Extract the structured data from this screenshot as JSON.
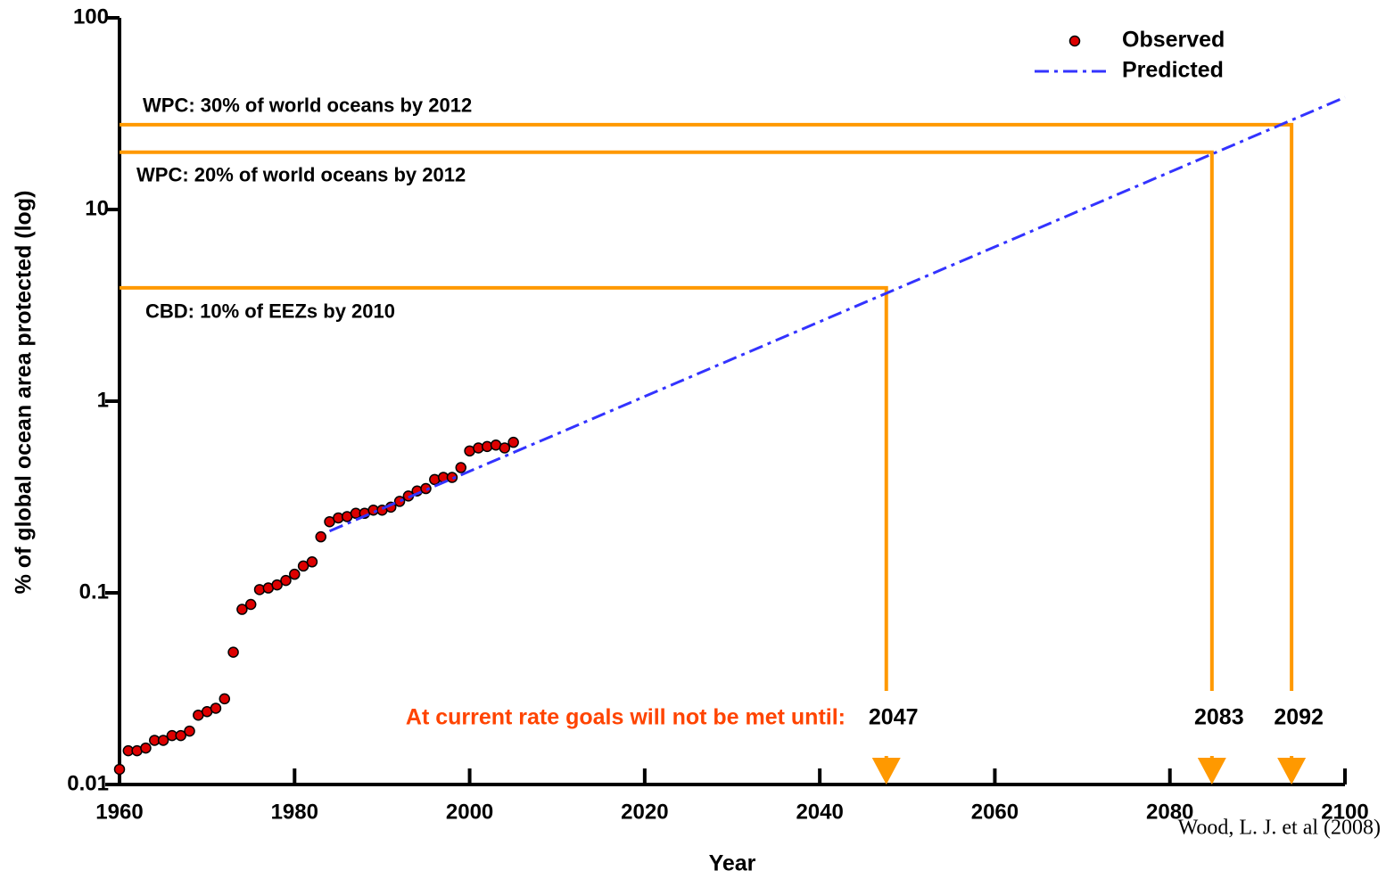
{
  "chart_data": {
    "type": "scatter",
    "y_label": "% of global ocean area protected (log)",
    "x_label": "Year",
    "xlim": [
      1960,
      2100
    ],
    "xticks": [
      1960,
      1980,
      2000,
      2020,
      2040,
      2060,
      2080,
      2100
    ],
    "ylim": [
      0.01,
      100
    ],
    "yticks": [
      0.01,
      0.1,
      1,
      10,
      100
    ],
    "log_y": true,
    "legend": "top-right",
    "series": [
      {
        "name": "Observed",
        "color": "#dd0000",
        "x": [
          1960,
          1961,
          1962,
          1963,
          1964,
          1965,
          1966,
          1967,
          1968,
          1969,
          1970,
          1971,
          1972,
          1973,
          1974,
          1975,
          1976,
          1977,
          1978,
          1979,
          1980,
          1981,
          1982,
          1983,
          1984,
          1985,
          1986,
          1987,
          1988,
          1989,
          1990,
          1991,
          1992,
          1993,
          1994,
          1995,
          1996,
          1997,
          1998,
          1999,
          2000,
          2001,
          2002,
          2003,
          2004,
          2005
        ],
        "values": [
          0.012,
          0.015,
          0.015,
          0.0155,
          0.017,
          0.017,
          0.018,
          0.018,
          0.019,
          0.023,
          0.024,
          0.025,
          0.028,
          0.049,
          0.082,
          0.087,
          0.104,
          0.106,
          0.11,
          0.116,
          0.125,
          0.138,
          0.145,
          0.196,
          0.235,
          0.246,
          0.25,
          0.26,
          0.26,
          0.27,
          0.27,
          0.28,
          0.3,
          0.32,
          0.34,
          0.35,
          0.39,
          0.4,
          0.4,
          0.45,
          0.55,
          0.57,
          0.58,
          0.59,
          0.57,
          0.61
        ]
      },
      {
        "name": "Predicted",
        "color": "#3333ff",
        "x": [
          1984,
          2100
        ],
        "values": [
          0.21,
          38.5
        ]
      }
    ],
    "goals": [
      {
        "text": "WPC: 30% of world oceans by 2012",
        "y": 27.7,
        "x": 2093.9,
        "year": "2092"
      },
      {
        "text": "WPC: 20% of world oceans by 2012",
        "y": 19.9,
        "x": 2084.8,
        "year": "2083"
      },
      {
        "text": "CBD: 10% of EEZs by 2010",
        "y": 3.9,
        "x": 2047.6,
        "year": "2047"
      }
    ],
    "goal_color": "#ff9900",
    "note": "At current rate goals will not be met until:",
    "note_color": "#ff4400",
    "source": "Wood, L. J. et al (2008)"
  }
}
